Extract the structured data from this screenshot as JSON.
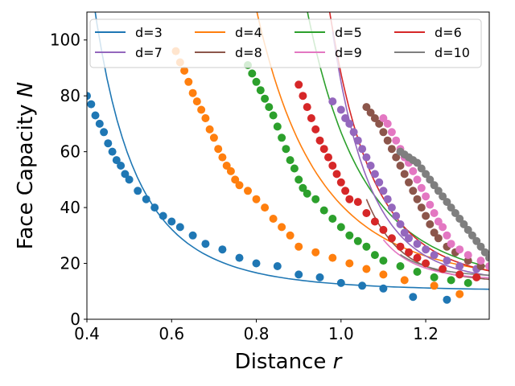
{
  "chart_data": {
    "type": "scatter",
    "title": "",
    "xlabel": "Distance",
    "xlabel_var": "r",
    "ylabel": "Face Capacity",
    "ylabel_var": "N",
    "xlim": [
      0.4,
      1.35
    ],
    "ylim": [
      0,
      110
    ],
    "xticks": [
      0.4,
      0.6,
      0.8,
      1.0,
      1.2
    ],
    "xtick_labels": [
      "0.4",
      "0.6",
      "0.8",
      "1.0",
      "1.2"
    ],
    "yticks": [
      0,
      20,
      40,
      60,
      80,
      100
    ],
    "ytick_labels": [
      "0",
      "20",
      "40",
      "60",
      "80",
      "100"
    ],
    "legend_position": "top",
    "legend_columns": 4,
    "grid": false,
    "series": [
      {
        "name": "d=3",
        "color": "#1f77b4",
        "fit": {
          "a": 2.6,
          "b": 10.0,
          "p": 4.2
        },
        "points": [
          [
            0.4,
            80
          ],
          [
            0.41,
            77
          ],
          [
            0.42,
            73
          ],
          [
            0.43,
            70
          ],
          [
            0.44,
            67
          ],
          [
            0.45,
            63
          ],
          [
            0.46,
            60
          ],
          [
            0.47,
            57
          ],
          [
            0.48,
            55
          ],
          [
            0.49,
            52
          ],
          [
            0.5,
            50
          ],
          [
            0.52,
            46
          ],
          [
            0.54,
            43
          ],
          [
            0.56,
            40
          ],
          [
            0.58,
            37
          ],
          [
            0.6,
            35
          ],
          [
            0.62,
            33
          ],
          [
            0.65,
            30
          ],
          [
            0.68,
            27
          ],
          [
            0.72,
            25
          ],
          [
            0.76,
            22
          ],
          [
            0.8,
            20
          ],
          [
            0.85,
            19
          ],
          [
            0.9,
            16
          ],
          [
            0.95,
            15
          ],
          [
            1.0,
            13
          ],
          [
            1.05,
            12
          ],
          [
            1.1,
            11
          ],
          [
            1.17,
            8
          ],
          [
            1.25,
            7
          ]
        ]
      },
      {
        "name": "d=4",
        "color": "#ff7f0e",
        "fit": {
          "a": 29.0,
          "b": 12.0,
          "p": 5.5
        },
        "points": [
          [
            0.61,
            96
          ],
          [
            0.62,
            92
          ],
          [
            0.63,
            89
          ],
          [
            0.64,
            85
          ],
          [
            0.65,
            81
          ],
          [
            0.66,
            78
          ],
          [
            0.67,
            75
          ],
          [
            0.68,
            72
          ],
          [
            0.69,
            68
          ],
          [
            0.7,
            65
          ],
          [
            0.71,
            61
          ],
          [
            0.72,
            58
          ],
          [
            0.73,
            55
          ],
          [
            0.74,
            53
          ],
          [
            0.75,
            50
          ],
          [
            0.76,
            48
          ],
          [
            0.78,
            46
          ],
          [
            0.8,
            43
          ],
          [
            0.82,
            40
          ],
          [
            0.84,
            36
          ],
          [
            0.86,
            33
          ],
          [
            0.88,
            30
          ],
          [
            0.9,
            26
          ],
          [
            0.94,
            24
          ],
          [
            0.98,
            22
          ],
          [
            1.02,
            20
          ],
          [
            1.06,
            18
          ],
          [
            1.1,
            16
          ],
          [
            1.15,
            14
          ],
          [
            1.22,
            12
          ],
          [
            1.28,
            9
          ]
        ]
      },
      {
        "name": "d=5",
        "color": "#2ca02c",
        "fit": {
          "a": 55.0,
          "b": 12.0,
          "p": 7.0
        },
        "points": [
          [
            0.78,
            91
          ],
          [
            0.79,
            88
          ],
          [
            0.8,
            85
          ],
          [
            0.81,
            82
          ],
          [
            0.82,
            79
          ],
          [
            0.83,
            76
          ],
          [
            0.84,
            73
          ],
          [
            0.85,
            69
          ],
          [
            0.86,
            65
          ],
          [
            0.87,
            61
          ],
          [
            0.88,
            57
          ],
          [
            0.89,
            54
          ],
          [
            0.9,
            50
          ],
          [
            0.91,
            47
          ],
          [
            0.92,
            45
          ],
          [
            0.94,
            43
          ],
          [
            0.96,
            39
          ],
          [
            0.98,
            36
          ],
          [
            1.0,
            33
          ],
          [
            1.02,
            30
          ],
          [
            1.04,
            28
          ],
          [
            1.06,
            26
          ],
          [
            1.08,
            23
          ],
          [
            1.1,
            21
          ],
          [
            1.14,
            19
          ],
          [
            1.18,
            17
          ],
          [
            1.22,
            15
          ],
          [
            1.26,
            14
          ],
          [
            1.3,
            13
          ]
        ]
      },
      {
        "name": "d=6",
        "color": "#d62728",
        "fit": {
          "a": 75.0,
          "b": 13.0,
          "p": 9.5
        },
        "points": [
          [
            0.9,
            84
          ],
          [
            0.91,
            80
          ],
          [
            0.92,
            76
          ],
          [
            0.93,
            72
          ],
          [
            0.94,
            68
          ],
          [
            0.95,
            64
          ],
          [
            0.96,
            61
          ],
          [
            0.97,
            58
          ],
          [
            0.98,
            55
          ],
          [
            0.99,
            52
          ],
          [
            1.0,
            49
          ],
          [
            1.01,
            46
          ],
          [
            1.02,
            43
          ],
          [
            1.04,
            42
          ],
          [
            1.06,
            38
          ],
          [
            1.08,
            35
          ],
          [
            1.1,
            32
          ],
          [
            1.12,
            29
          ],
          [
            1.14,
            26
          ],
          [
            1.16,
            24
          ],
          [
            1.18,
            22
          ],
          [
            1.2,
            20
          ],
          [
            1.24,
            18
          ],
          [
            1.28,
            16
          ],
          [
            1.32,
            15
          ]
        ]
      },
      {
        "name": "d=7",
        "color": "#9467bd",
        "fit": {
          "a": 72.0,
          "b": 13.0,
          "p": 11.0
        },
        "points": [
          [
            0.98,
            78
          ],
          [
            1.0,
            75
          ],
          [
            1.01,
            72
          ],
          [
            1.02,
            70
          ],
          [
            1.03,
            67
          ],
          [
            1.04,
            64
          ],
          [
            1.05,
            61
          ],
          [
            1.06,
            58
          ],
          [
            1.07,
            55
          ],
          [
            1.08,
            52
          ],
          [
            1.09,
            49
          ],
          [
            1.1,
            46
          ],
          [
            1.11,
            43
          ],
          [
            1.12,
            40
          ],
          [
            1.13,
            37
          ],
          [
            1.14,
            34
          ],
          [
            1.15,
            31
          ],
          [
            1.16,
            29
          ],
          [
            1.18,
            27
          ],
          [
            1.2,
            25
          ],
          [
            1.22,
            23
          ],
          [
            1.25,
            21
          ],
          [
            1.28,
            19
          ],
          [
            1.32,
            18
          ]
        ]
      },
      {
        "name": "d=8",
        "color": "#8c564b",
        "fit": {
          "a": 64.0,
          "b": 13.0,
          "p": 13.0
        },
        "points": [
          [
            1.06,
            76
          ],
          [
            1.07,
            74
          ],
          [
            1.08,
            72
          ],
          [
            1.09,
            70
          ],
          [
            1.1,
            67
          ],
          [
            1.11,
            64
          ],
          [
            1.12,
            61
          ],
          [
            1.13,
            58
          ],
          [
            1.14,
            55
          ],
          [
            1.15,
            52
          ],
          [
            1.16,
            49
          ],
          [
            1.17,
            46
          ],
          [
            1.18,
            43
          ],
          [
            1.19,
            40
          ],
          [
            1.2,
            37
          ],
          [
            1.21,
            34
          ],
          [
            1.22,
            31
          ],
          [
            1.23,
            29
          ],
          [
            1.25,
            26
          ],
          [
            1.27,
            24
          ],
          [
            1.3,
            21
          ],
          [
            1.33,
            19
          ]
        ]
      },
      {
        "name": "d=9",
        "color": "#e377c2",
        "fit": {
          "a": 55.0,
          "b": 14.0,
          "p": 14.0
        },
        "points": [
          [
            1.1,
            72
          ],
          [
            1.11,
            70
          ],
          [
            1.12,
            67
          ],
          [
            1.13,
            64
          ],
          [
            1.14,
            61
          ],
          [
            1.15,
            58
          ],
          [
            1.16,
            56
          ],
          [
            1.17,
            53
          ],
          [
            1.18,
            50
          ],
          [
            1.19,
            47
          ],
          [
            1.2,
            44
          ],
          [
            1.21,
            41
          ],
          [
            1.22,
            38
          ],
          [
            1.23,
            35
          ],
          [
            1.24,
            33
          ],
          [
            1.25,
            30
          ],
          [
            1.26,
            27
          ],
          [
            1.28,
            25
          ],
          [
            1.3,
            23
          ],
          [
            1.33,
            21
          ],
          [
            1.35,
            19
          ]
        ]
      },
      {
        "name": "d=10",
        "color": "#7f7f7f",
        "fit": {
          "a": 51.0,
          "b": 15.0,
          "p": 14.0
        },
        "points": [
          [
            1.14,
            60
          ],
          [
            1.15,
            59
          ],
          [
            1.16,
            58
          ],
          [
            1.17,
            57
          ],
          [
            1.18,
            56
          ],
          [
            1.19,
            54
          ],
          [
            1.2,
            52
          ],
          [
            1.21,
            50
          ],
          [
            1.22,
            48
          ],
          [
            1.23,
            46
          ],
          [
            1.24,
            44
          ],
          [
            1.25,
            42
          ],
          [
            1.26,
            40
          ],
          [
            1.27,
            38
          ],
          [
            1.28,
            36
          ],
          [
            1.29,
            34
          ],
          [
            1.3,
            32
          ],
          [
            1.31,
            30
          ],
          [
            1.32,
            28
          ],
          [
            1.33,
            26
          ],
          [
            1.34,
            24
          ],
          [
            1.35,
            22
          ]
        ]
      }
    ]
  }
}
